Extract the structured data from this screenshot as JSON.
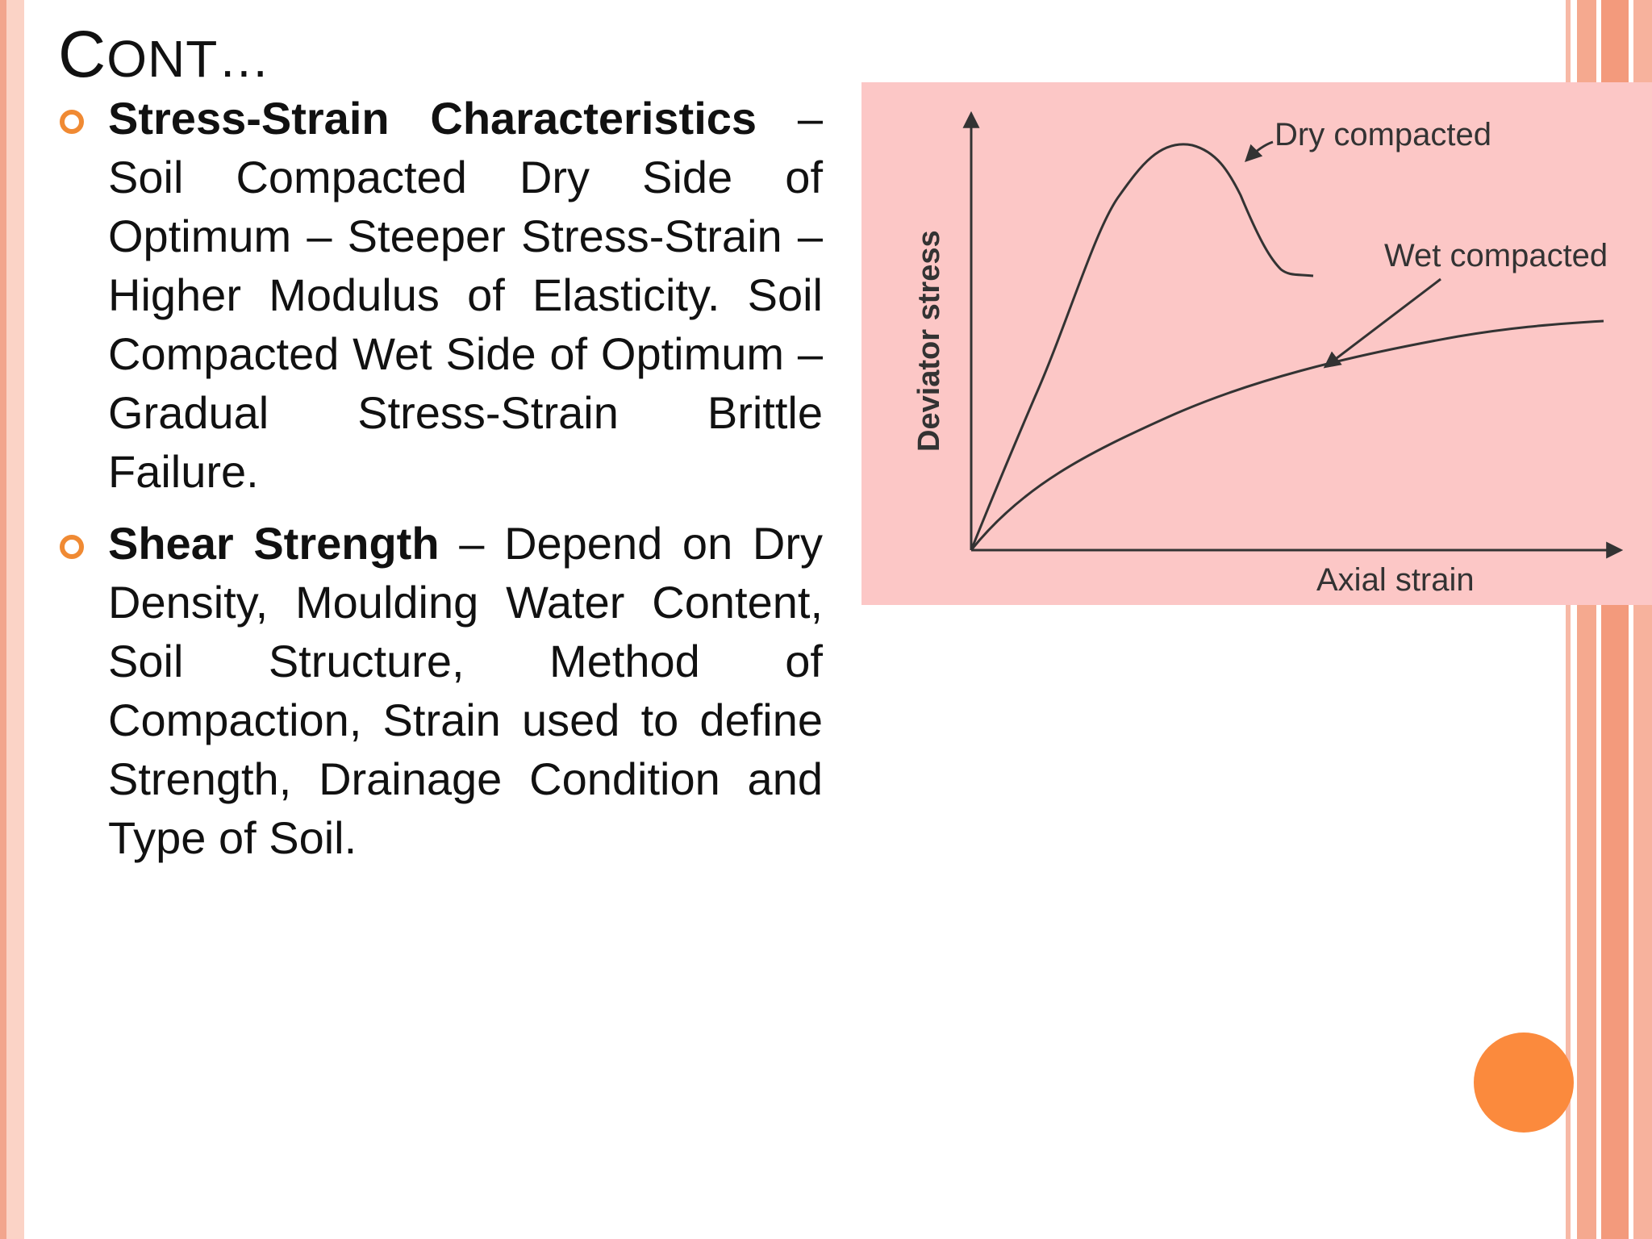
{
  "slide": {
    "title_first": "C",
    "title_rest": "ONT…",
    "bullets": [
      {
        "term": "Stress-Strain Characteristics",
        "text": " – Soil Compacted Dry Side of Optimum – Steeper Stress-Strain – Higher Modulus of Elasticity. Soil Compacted Wet Side of Optimum – Gradual Stress-Strain Brittle Failure."
      },
      {
        "term": "Shear Strength",
        "text": " –  Depend on Dry Density, Moulding Water Content, Soil Structure, Method of Compaction, Strain used to define Strength, Drainage Condition and Type of Soil."
      }
    ]
  },
  "diagram": {
    "y_axis_label": "Deviator stress",
    "x_axis_label": "Axial strain",
    "curve_labels": {
      "dry": "Dry compacted",
      "wet": "Wet compacted"
    },
    "colors": {
      "panel_background": "#fcc7c6",
      "line": "#333333",
      "bullet_marker": "#f08a33",
      "orange_dot": "#fb8a3d"
    }
  }
}
